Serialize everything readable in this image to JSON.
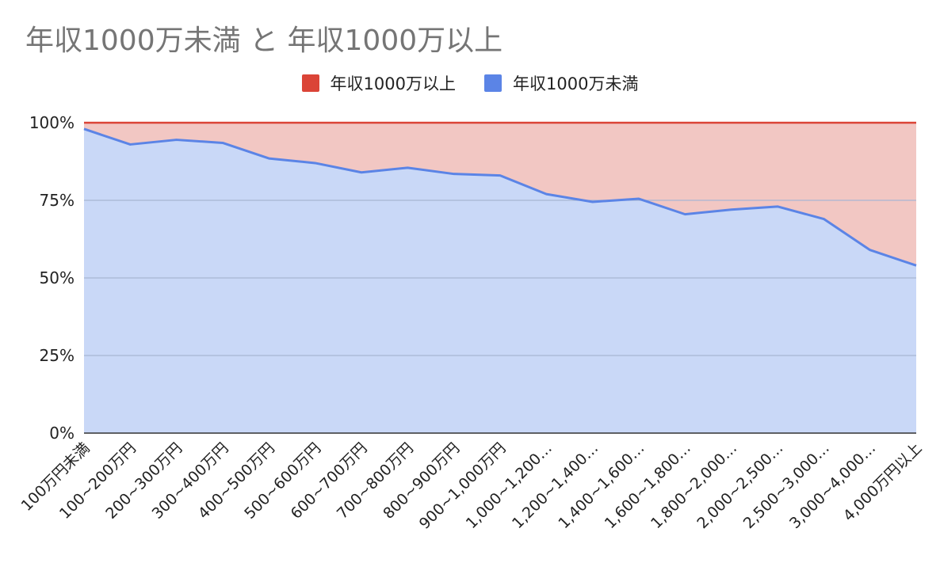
{
  "chart_data": {
    "type": "area",
    "stacked": "percent",
    "title": "年収1000万未満 と 年収1000万以上",
    "xlabel": "",
    "ylabel": "",
    "ylim": [
      0,
      100
    ],
    "y_ticks": [
      "0%",
      "25%",
      "50%",
      "75%",
      "100%"
    ],
    "legend_position": "top",
    "grid": true,
    "categories": [
      "100万円未満",
      "100~200万円",
      "200~300万円",
      "300~400万円",
      "400~500万円",
      "500~600万円",
      "600~700万円",
      "700~800万円",
      "800~900万円",
      "900~1,000万円",
      "1,000~1,200…",
      "1,200~1,400…",
      "1,400~1,600…",
      "1,600~1,800…",
      "1,800~2,000…",
      "2,000~2,500…",
      "2,500~3,000…",
      "3,000~4,000…",
      "4,000万円以上"
    ],
    "series": [
      {
        "name": "年収1000万以上",
        "color": "#db4437",
        "fill": "#f2c7c3",
        "values": [
          2,
          7,
          5.5,
          6.5,
          11.5,
          13,
          16,
          14.5,
          16.5,
          17,
          23,
          25.5,
          24.5,
          29.5,
          28,
          27,
          31,
          41,
          46
        ]
      },
      {
        "name": "年収1000万未満",
        "color": "#5b84e6",
        "fill": "#c9d8f7",
        "values": [
          98,
          93,
          94.5,
          93.5,
          88.5,
          87,
          84,
          85.5,
          83.5,
          83,
          77,
          74.5,
          75.5,
          70.5,
          72,
          73,
          69,
          59,
          54
        ]
      }
    ]
  }
}
